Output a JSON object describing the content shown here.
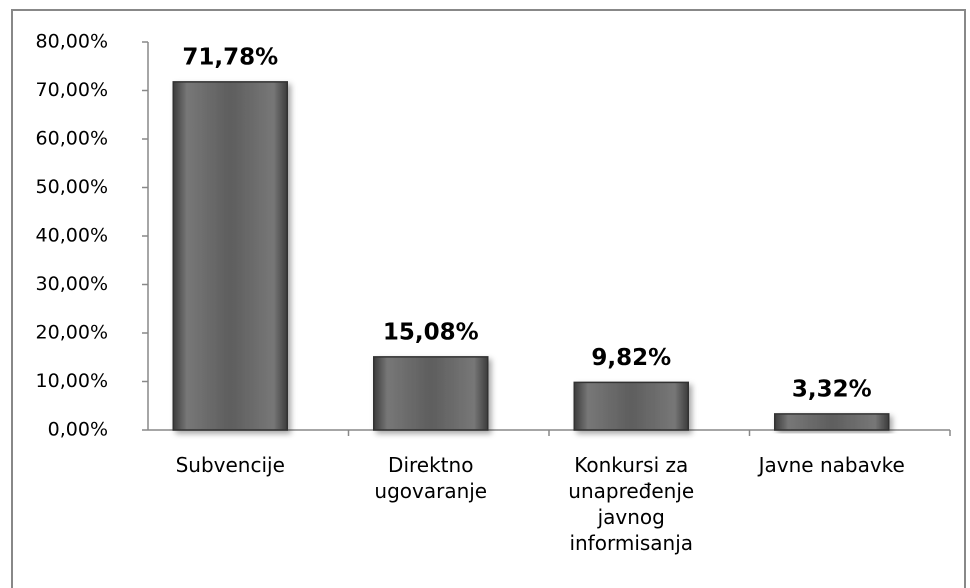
{
  "chart_data": {
    "type": "bar",
    "categories": [
      "Subvencije",
      "Direktno ugovaranje",
      "Konkursi za unapređenje javnog informisanja",
      "Javne nabavke"
    ],
    "values": [
      71.78,
      15.08,
      9.82,
      3.32
    ],
    "value_labels": [
      "71,78%",
      "15,08%",
      "9,82%",
      "3,32%"
    ],
    "color": "#5a5a5a",
    "ylim": [
      0,
      80
    ],
    "yticks": [
      {
        "value": 0,
        "label": "0,00%"
      },
      {
        "value": 10,
        "label": "10,00%"
      },
      {
        "value": 20,
        "label": "20,00%"
      },
      {
        "value": 30,
        "label": "30,00%"
      },
      {
        "value": 40,
        "label": "40,00%"
      },
      {
        "value": 50,
        "label": "50,00%"
      },
      {
        "value": 60,
        "label": "60,00%"
      },
      {
        "value": 70,
        "label": "70,00%"
      },
      {
        "value": 80,
        "label": "80,00%"
      }
    ],
    "grid": false
  }
}
